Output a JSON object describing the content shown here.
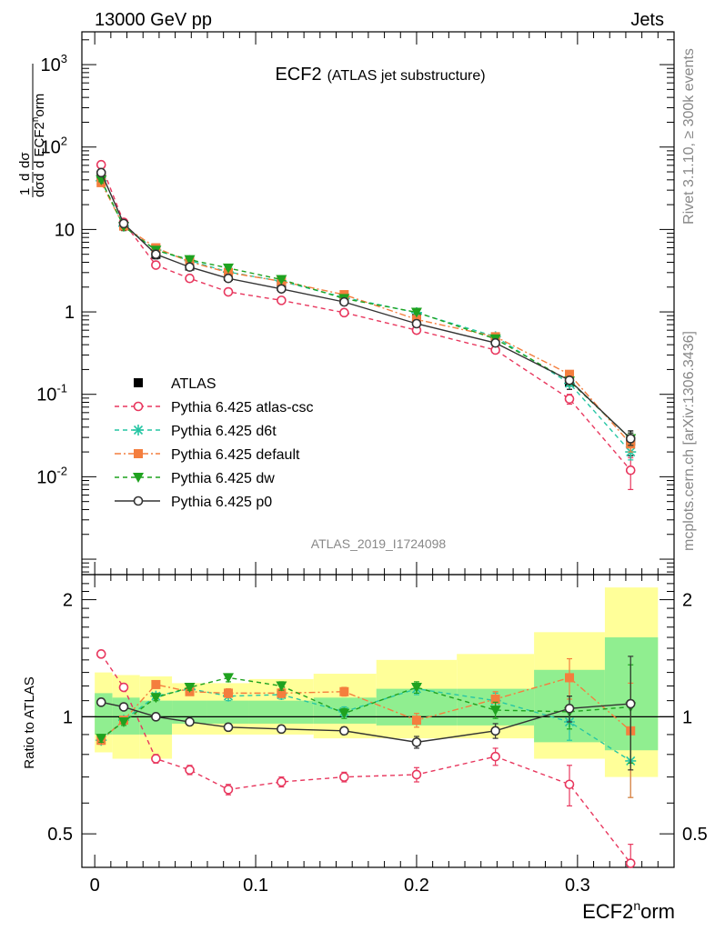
{
  "header": {
    "left": "13000 GeV pp",
    "right": "Jets",
    "side_right_top": "Rivet 3.1.10, ≥ 300k events",
    "side_right_bottom": "mcplots.cern.ch [arXiv:1306.3436]",
    "analysis_tag": "ATLAS_2019_I1724098"
  },
  "chart_data": [
    {
      "type": "line",
      "panel": "main",
      "title": "ECF2",
      "subtitle": "(ATLAS jet substructure)",
      "xlabel": "ECF2^{n}orm",
      "ylabel": "1/σ dσ/d ECF2^{n}orm",
      "yscale": "log",
      "xlim": [
        -0.008,
        0.36
      ],
      "ylim": [
        0.00065,
        2500
      ],
      "yticks": [
        "10^{-2}",
        "10^{-1}",
        "1",
        "10",
        "10^{2}",
        "10^{3}"
      ],
      "xticks": [
        "0",
        "0.1",
        "0.2",
        "0.3"
      ],
      "legend_position": "bottom-left",
      "x": [
        0.004,
        0.018,
        0.038,
        0.059,
        0.083,
        0.116,
        0.155,
        0.2,
        0.249,
        0.295,
        0.333
      ],
      "series": [
        {
          "name": "ATLAS",
          "color": "#000000",
          "marker": "square",
          "values": [
            45,
            11.2,
            5.0,
            3.6,
            2.7,
            2.05,
            1.42,
            0.83,
            0.455,
            0.14,
            0.027
          ],
          "errors": [
            6,
            1.5,
            0.6,
            0.4,
            0.3,
            0.25,
            0.18,
            0.11,
            0.06,
            0.025,
            0.009
          ]
        },
        {
          "name": "Pythia 6.425 atlas-csc",
          "color": "#e8375e",
          "marker": "open-circle",
          "linestyle": "dashed",
          "values": [
            61,
            12.2,
            3.7,
            2.55,
            1.75,
            1.38,
            0.98,
            0.6,
            0.345,
            0.088,
            0.012
          ],
          "errors": [
            3,
            0.5,
            0.15,
            0.1,
            0.07,
            0.05,
            0.04,
            0.03,
            0.02,
            0.012,
            0.005
          ]
        },
        {
          "name": "Pythia 6.425 d6t",
          "color": "#27c6a4",
          "marker": "star",
          "linestyle": "dashed",
          "values": [
            39,
            11.0,
            5.6,
            4.2,
            3.05,
            2.35,
            1.5,
            0.98,
            0.5,
            0.136,
            0.02
          ],
          "errors": [
            2,
            0.4,
            0.2,
            0.15,
            0.1,
            0.08,
            0.05,
            0.04,
            0.02,
            0.01,
            0.004
          ]
        },
        {
          "name": "Pythia 6.425 default",
          "color": "#f47e3e",
          "marker": "square",
          "linestyle": "dashdot",
          "values": [
            37,
            11.0,
            6.0,
            4.05,
            3.0,
            2.35,
            1.62,
            0.81,
            0.5,
            0.175,
            0.025
          ],
          "errors": [
            2,
            0.4,
            0.2,
            0.15,
            0.1,
            0.08,
            0.05,
            0.04,
            0.02,
            0.012,
            0.005
          ]
        },
        {
          "name": "Pythia 6.425 dw",
          "color": "#1fa21f",
          "marker": "triangle-down",
          "linestyle": "dashed",
          "values": [
            40,
            10.9,
            5.6,
            4.3,
            3.4,
            2.47,
            1.45,
            0.99,
            0.47,
            0.145,
            0.029
          ],
          "errors": [
            2,
            0.4,
            0.2,
            0.15,
            0.1,
            0.08,
            0.05,
            0.04,
            0.02,
            0.01,
            0.005
          ]
        },
        {
          "name": "Pythia 6.425 p0",
          "color": "#333333",
          "marker": "open-circle",
          "linestyle": "solid",
          "values": [
            49,
            11.8,
            5.0,
            3.5,
            2.55,
            1.9,
            1.32,
            0.72,
            0.42,
            0.148,
            0.029
          ],
          "errors": [
            2,
            0.4,
            0.2,
            0.15,
            0.1,
            0.08,
            0.05,
            0.04,
            0.02,
            0.01,
            0.005
          ]
        }
      ]
    },
    {
      "type": "line",
      "panel": "ratio",
      "ylabel": "Ratio to ATLAS",
      "xlabel": "ECF2^{n}orm",
      "xlim": [
        -0.008,
        0.36
      ],
      "ylim": [
        0.41,
        2.32
      ],
      "yscale": "log",
      "yticks": [
        "0.5",
        "1",
        "2"
      ],
      "xticks": [
        "0",
        "0.1",
        "0.2",
        "0.3"
      ],
      "bin_edges": [
        0.0,
        0.011,
        0.028,
        0.048,
        0.07,
        0.096,
        0.136,
        0.175,
        0.225,
        0.273,
        0.317,
        0.35
      ],
      "band_outer": [
        [
          0.81,
          1.3
        ],
        [
          0.78,
          1.28
        ],
        [
          0.78,
          1.27
        ],
        [
          0.9,
          1.22
        ],
        [
          0.9,
          1.22
        ],
        [
          0.9,
          1.25
        ],
        [
          0.88,
          1.29
        ],
        [
          0.88,
          1.4
        ],
        [
          0.88,
          1.45
        ],
        [
          0.78,
          1.65
        ],
        [
          0.7,
          2.15
        ]
      ],
      "band_inner": [
        [
          0.9,
          1.15
        ],
        [
          0.9,
          1.12
        ],
        [
          0.9,
          1.1
        ],
        [
          0.96,
          1.1
        ],
        [
          0.96,
          1.1
        ],
        [
          0.96,
          1.1
        ],
        [
          0.96,
          1.12
        ],
        [
          0.95,
          1.18
        ],
        [
          0.95,
          1.18
        ],
        [
          0.86,
          1.32
        ],
        [
          0.82,
          1.6
        ]
      ],
      "x": [
        0.004,
        0.018,
        0.038,
        0.059,
        0.083,
        0.116,
        0.155,
        0.2,
        0.249,
        0.295,
        0.333
      ],
      "series": [
        {
          "name": "Pythia 6.425 atlas-csc",
          "color": "#e8375e",
          "marker": "open-circle",
          "linestyle": "dashed",
          "values": [
            1.45,
            1.19,
            0.78,
            0.73,
            0.65,
            0.68,
            0.7,
            0.71,
            0.79,
            0.67,
            0.42
          ],
          "errors": [
            0.03,
            0.02,
            0.02,
            0.02,
            0.02,
            0.02,
            0.02,
            0.03,
            0.04,
            0.08,
            0.05
          ]
        },
        {
          "name": "Pythia 6.425 d6t",
          "color": "#27c6a4",
          "marker": "star",
          "linestyle": "dashed",
          "values": [
            0.87,
            0.98,
            1.13,
            1.18,
            1.13,
            1.14,
            1.03,
            1.18,
            1.1,
            0.97,
            0.77
          ],
          "errors": [
            0.02,
            0.02,
            0.02,
            0.02,
            0.03,
            0.03,
            0.03,
            0.04,
            0.05,
            0.1,
            0.15
          ]
        },
        {
          "name": "Pythia 6.425 default",
          "color": "#f47e3e",
          "marker": "square",
          "linestyle": "dashdot",
          "values": [
            0.87,
            0.98,
            1.21,
            1.16,
            1.15,
            1.15,
            1.16,
            0.98,
            1.11,
            1.26,
            0.92
          ],
          "errors": [
            0.02,
            0.02,
            0.02,
            0.02,
            0.03,
            0.03,
            0.03,
            0.04,
            0.05,
            0.15,
            0.3
          ]
        },
        {
          "name": "Pythia 6.425 dw",
          "color": "#1fa21f",
          "marker": "triangle-down",
          "linestyle": "dashed",
          "values": [
            0.88,
            0.97,
            1.12,
            1.19,
            1.26,
            1.2,
            1.02,
            1.19,
            1.04,
            1.03,
            1.06
          ],
          "errors": [
            0.02,
            0.02,
            0.02,
            0.02,
            0.03,
            0.03,
            0.03,
            0.04,
            0.05,
            0.1,
            0.3
          ]
        },
        {
          "name": "Pythia 6.425 p0",
          "color": "#333333",
          "marker": "open-circle",
          "linestyle": "solid",
          "values": [
            1.09,
            1.06,
            1.0,
            0.97,
            0.94,
            0.93,
            0.92,
            0.86,
            0.92,
            1.05,
            1.08
          ],
          "errors": [
            0.02,
            0.02,
            0.02,
            0.02,
            0.02,
            0.02,
            0.02,
            0.03,
            0.04,
            0.08,
            0.35
          ]
        }
      ]
    }
  ]
}
